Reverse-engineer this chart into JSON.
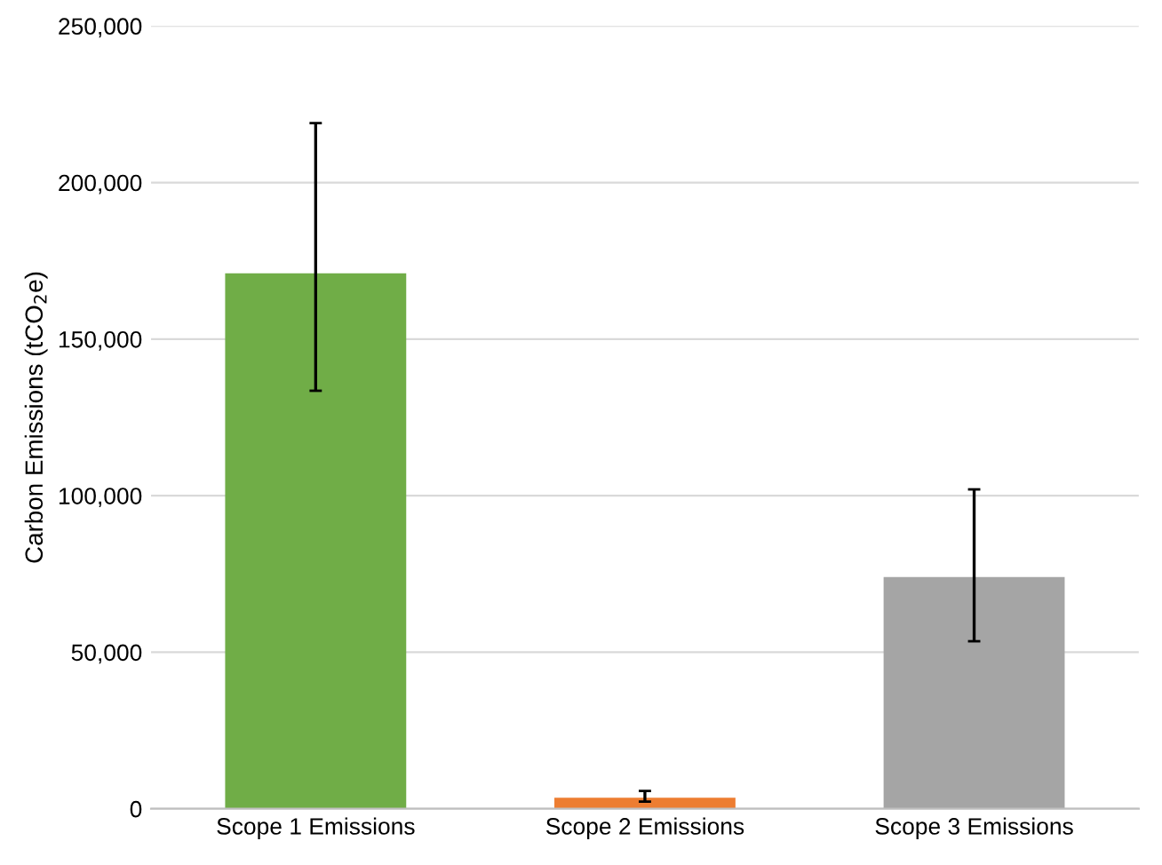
{
  "chart_data": {
    "type": "bar",
    "ylabel": "Carbon Emissions (tCO$_{2}$e)",
    "categories": [
      "Scope 1 Emissions",
      "Scope 2 Emissions",
      "Scope 3 Emissions"
    ],
    "values": [
      171000,
      3500,
      74000
    ],
    "colors": [
      "#70ad47",
      "#ed7d31",
      "#a5a5a5"
    ],
    "errors": [
      [
        133500,
        219000
      ],
      [
        2300,
        5700
      ],
      [
        53500,
        102000
      ]
    ],
    "ylim": [
      0,
      250000
    ],
    "yticks": [
      {
        "value": 0,
        "label": "0"
      },
      {
        "value": 50000,
        "label": "50,000"
      },
      {
        "value": 100000,
        "label": "100,000"
      },
      {
        "value": 150000,
        "label": "150,000"
      },
      {
        "value": 200000,
        "label": "200,000"
      },
      {
        "value": 250000,
        "label": "250,000"
      }
    ],
    "grid": "y"
  }
}
